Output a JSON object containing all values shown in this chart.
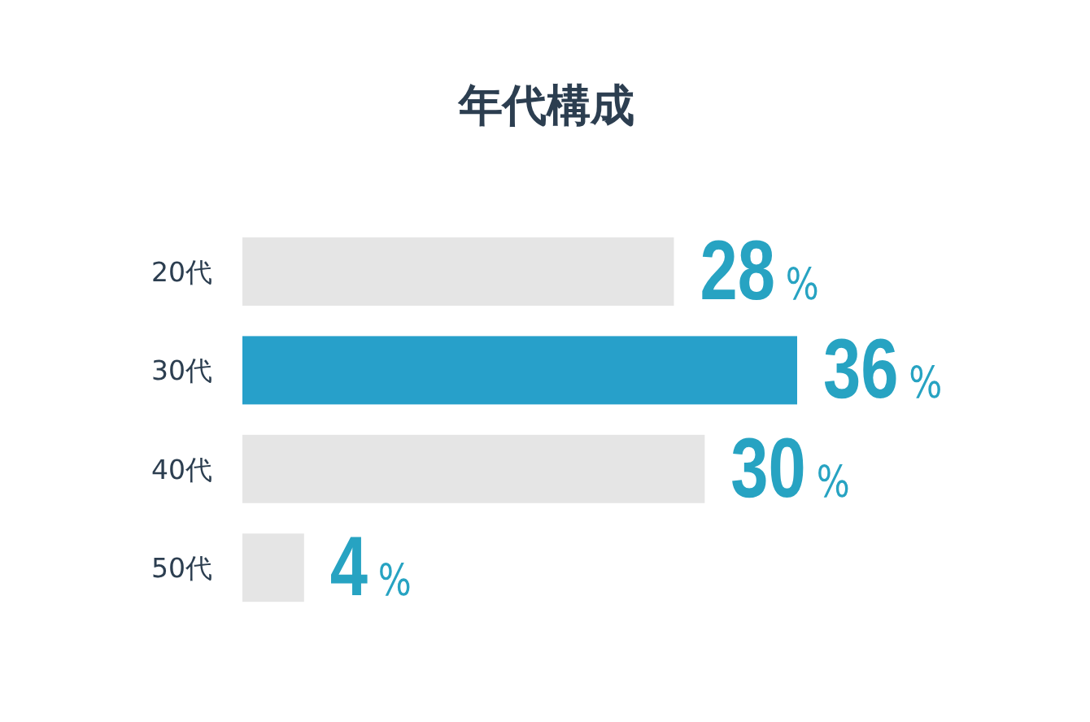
{
  "chart_data": {
    "type": "bar",
    "orientation": "horizontal",
    "title": "年代構成",
    "categories": [
      "20代",
      "30代",
      "40代",
      "50代"
    ],
    "values": [
      28,
      36,
      30,
      4
    ],
    "colors": [
      "#e5e5e5",
      "#27a0ca",
      "#e5e5e5",
      "#e5e5e5"
    ],
    "value_labels": [
      "28%",
      "36%",
      "30%",
      "4%"
    ]
  }
}
